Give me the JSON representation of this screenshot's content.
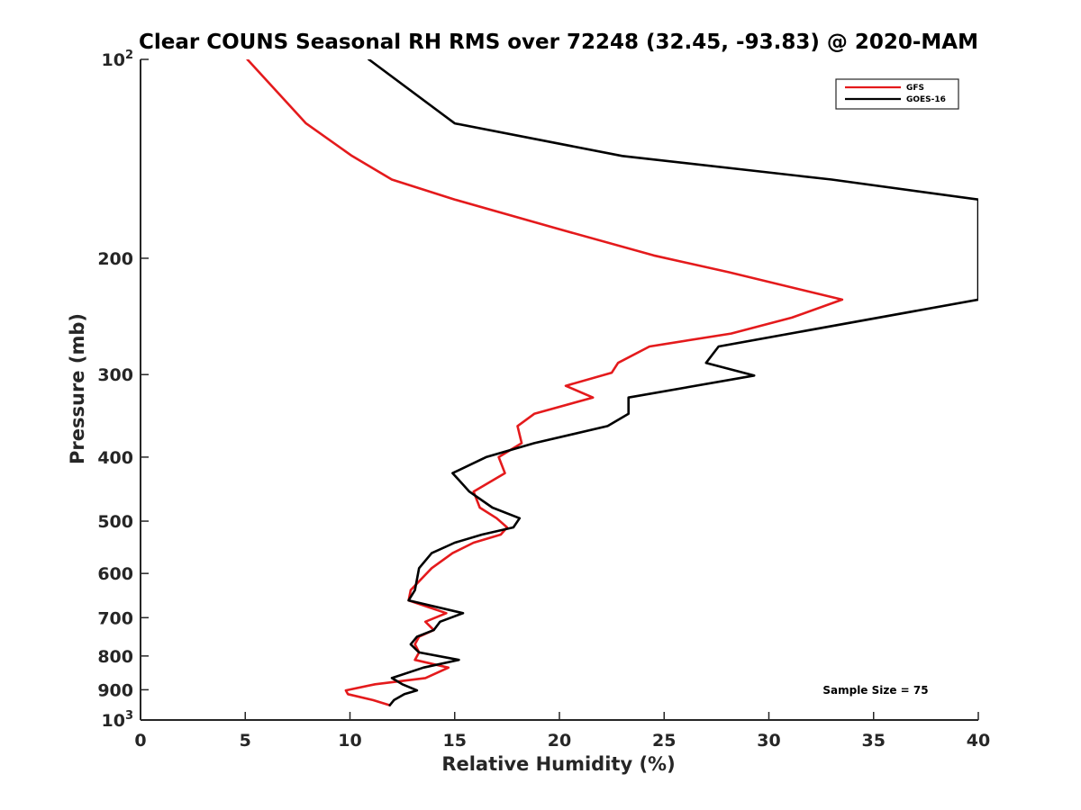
{
  "chart_data": {
    "type": "line",
    "title": "Clear COUNS Seasonal RH RMS over 72248 (32.45, -93.83) @ 2020-MAM",
    "xlabel": "Relative Humidity (%)",
    "ylabel": "Pressure (mb)",
    "xlim": [
      0,
      40
    ],
    "ylim": [
      100,
      1000
    ],
    "yscale": "log",
    "y_reversed": true,
    "x_ticks": [
      "0",
      "5",
      "10",
      "15",
      "20",
      "25",
      "30",
      "35",
      "40"
    ],
    "y_ticks": [
      {
        "value": 100,
        "label": "10",
        "sup": "2"
      },
      {
        "value": 200,
        "label": "200",
        "sup": ""
      },
      {
        "value": 300,
        "label": "300",
        "sup": ""
      },
      {
        "value": 400,
        "label": "400",
        "sup": ""
      },
      {
        "value": 500,
        "label": "500",
        "sup": ""
      },
      {
        "value": 600,
        "label": "600",
        "sup": ""
      },
      {
        "value": 700,
        "label": "700",
        "sup": ""
      },
      {
        "value": 800,
        "label": "800",
        "sup": ""
      },
      {
        "value": 900,
        "label": "900",
        "sup": ""
      },
      {
        "value": 1000,
        "label": "10",
        "sup": "3"
      }
    ],
    "legend_position": "top-right",
    "annotation": "Sample Size = 75",
    "series": [
      {
        "name": "GFS",
        "color": "#e41a1c",
        "points": [
          [
            5.1,
            100
          ],
          [
            7.9,
            125
          ],
          [
            10.1,
            140
          ],
          [
            12.0,
            152
          ],
          [
            15.0,
            163
          ],
          [
            19.8,
            180
          ],
          [
            24.5,
            198
          ],
          [
            28.1,
            210
          ],
          [
            33.5,
            231
          ],
          [
            31.1,
            246
          ],
          [
            28.2,
            260
          ],
          [
            24.3,
            272
          ],
          [
            22.8,
            288
          ],
          [
            22.5,
            298
          ],
          [
            20.3,
            312
          ],
          [
            21.6,
            325
          ],
          [
            18.8,
            344
          ],
          [
            18.0,
            359
          ],
          [
            18.2,
            381
          ],
          [
            17.1,
            400
          ],
          [
            17.4,
            423
          ],
          [
            15.9,
            451
          ],
          [
            16.2,
            477
          ],
          [
            17.0,
            495
          ],
          [
            17.5,
            511
          ],
          [
            17.2,
            524
          ],
          [
            15.9,
            539
          ],
          [
            14.9,
            559
          ],
          [
            13.9,
            589
          ],
          [
            12.9,
            636
          ],
          [
            12.8,
            659
          ],
          [
            14.6,
            689
          ],
          [
            13.6,
            710
          ],
          [
            14.0,
            731
          ],
          [
            13.3,
            748
          ],
          [
            13.1,
            768
          ],
          [
            13.3,
            790
          ],
          [
            13.1,
            811
          ],
          [
            14.7,
            833
          ],
          [
            13.6,
            864
          ],
          [
            11.2,
            883
          ],
          [
            9.8,
            902
          ],
          [
            9.9,
            914
          ],
          [
            11.1,
            933
          ],
          [
            11.9,
            950
          ]
        ]
      },
      {
        "name": "GOES-16",
        "color": "#000000",
        "points": [
          [
            10.9,
            100
          ],
          [
            15.0,
            125
          ],
          [
            23.0,
            140
          ],
          [
            33.0,
            152
          ],
          [
            40.0,
            163
          ],
          [
            40.0,
            231
          ],
          [
            27.6,
            272
          ],
          [
            27.0,
            288
          ],
          [
            29.3,
            301
          ],
          [
            23.3,
            325
          ],
          [
            23.3,
            344
          ],
          [
            22.3,
            359
          ],
          [
            18.8,
            381
          ],
          [
            16.5,
            400
          ],
          [
            14.9,
            423
          ],
          [
            15.7,
            451
          ],
          [
            16.8,
            477
          ],
          [
            18.1,
            495
          ],
          [
            17.8,
            511
          ],
          [
            16.3,
            524
          ],
          [
            15.0,
            539
          ],
          [
            13.9,
            559
          ],
          [
            13.3,
            589
          ],
          [
            13.1,
            636
          ],
          [
            12.8,
            659
          ],
          [
            15.4,
            689
          ],
          [
            14.3,
            710
          ],
          [
            14.0,
            731
          ],
          [
            13.2,
            748
          ],
          [
            12.9,
            768
          ],
          [
            13.3,
            790
          ],
          [
            15.2,
            811
          ],
          [
            13.5,
            833
          ],
          [
            12.0,
            864
          ],
          [
            12.5,
            883
          ],
          [
            13.2,
            902
          ],
          [
            12.6,
            914
          ],
          [
            12.1,
            933
          ],
          [
            11.9,
            950
          ]
        ]
      }
    ]
  }
}
